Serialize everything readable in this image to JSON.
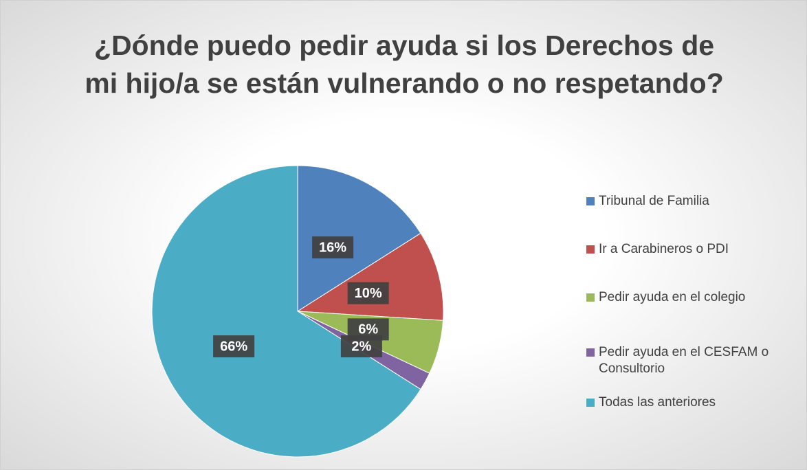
{
  "chart_data": {
    "type": "pie",
    "title": "¿Dónde puedo pedir ayuda si los Derechos de mi hijo/a se están vulnerando o no respetando?",
    "categories": [
      "Tribunal de Familia",
      "Ir a Carabineros o PDI",
      "Pedir ayuda en el colegio",
      "Pedir ayuda en el CESFAM o Consultorio",
      "Todas las anteriores"
    ],
    "values": [
      16,
      10,
      6,
      2,
      66
    ],
    "value_labels": [
      "16%",
      "10%",
      "6%",
      "2%",
      "66%"
    ],
    "colors": [
      "#4f81bd",
      "#c0504d",
      "#9bbb59",
      "#8064a2",
      "#4bacc6"
    ],
    "legend": "right"
  }
}
